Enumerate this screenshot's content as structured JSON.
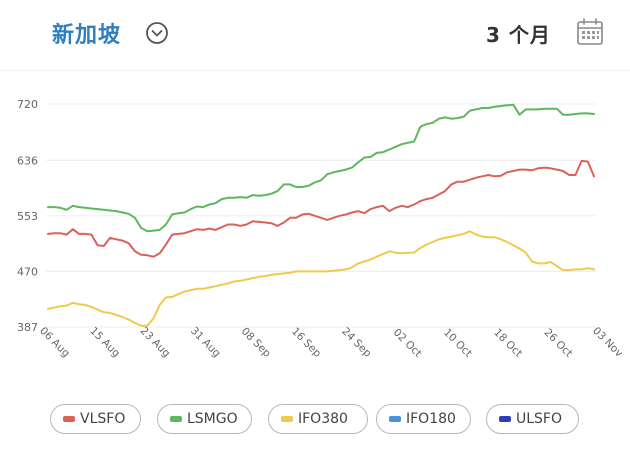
{
  "header": {
    "location": "新加坡",
    "range_label": "3 个月"
  },
  "colors": {
    "VLSFO": "#d9625b",
    "LSMGO": "#5cb85c",
    "IFO380": "#f0c94d",
    "IFO180": "#4a90e2",
    "ULSFO": "#2c3fb5"
  },
  "legend": [
    {
      "label": "VLSFO",
      "color": "#d9625b"
    },
    {
      "label": "LSMGO",
      "color": "#5cb85c"
    },
    {
      "label": "IFO380",
      "color": "#f0c94d"
    },
    {
      "label": "IFO180",
      "color": "#4a90e2"
    },
    {
      "label": "ULSFO",
      "color": "#2c3fb5"
    }
  ],
  "chart_data": {
    "type": "line",
    "yticks": [
      "720",
      "636",
      "553",
      "470",
      "387"
    ],
    "ylim": [
      387,
      720
    ],
    "xticks": [
      "06 Aug",
      "15 Aug",
      "23 Aug",
      "31 Aug",
      "08 Sep",
      "16 Sep",
      "24 Sep",
      "02 Oct",
      "10 Oct",
      "18 Oct",
      "26 Oct",
      "03 Nov"
    ],
    "grid": true,
    "legend_position": "bottom",
    "series": [
      {
        "name": "LSMGO",
        "values": [
          566,
          566,
          565,
          562,
          568,
          566,
          565,
          564,
          563,
          562,
          561,
          560,
          558,
          556,
          550,
          535,
          530,
          531,
          532,
          540,
          555,
          557,
          558,
          563,
          567,
          566,
          570,
          572,
          578,
          580,
          580,
          581,
          580,
          584,
          583,
          584,
          586,
          590,
          600,
          600,
          596,
          596,
          598,
          603,
          606,
          615,
          618,
          620,
          622,
          625,
          633,
          640,
          641,
          647,
          648,
          652,
          656,
          660,
          662,
          664,
          686,
          690,
          692,
          698,
          700,
          698,
          699,
          701,
          710,
          712,
          714,
          714,
          716,
          717,
          718,
          719,
          704,
          712,
          712,
          712,
          713,
          713,
          713,
          704,
          704,
          705,
          706,
          706,
          705
        ]
      },
      {
        "name": "VLSFO",
        "values": [
          526,
          527,
          527,
          525,
          533,
          526,
          526,
          525,
          509,
          508,
          520,
          518,
          516,
          512,
          500,
          495,
          494,
          492,
          497,
          510,
          525,
          526,
          527,
          530,
          533,
          532,
          534,
          532,
          536,
          540,
          540,
          538,
          540,
          545,
          544,
          543,
          542,
          538,
          543,
          550,
          550,
          555,
          556,
          553,
          550,
          547,
          550,
          553,
          555,
          558,
          560,
          557,
          563,
          566,
          568,
          560,
          565,
          568,
          566,
          570,
          575,
          578,
          580,
          585,
          590,
          600,
          604,
          604,
          607,
          610,
          612,
          614,
          612,
          613,
          618,
          620,
          622,
          622,
          621,
          624,
          625,
          624,
          622,
          620,
          614,
          614,
          635,
          634,
          612
        ]
      },
      {
        "name": "IFO380",
        "values": [
          414,
          416,
          418,
          419,
          423,
          421,
          420,
          417,
          413,
          409,
          408,
          405,
          402,
          398,
          393,
          389,
          389,
          400,
          420,
          431,
          432,
          436,
          440,
          442,
          444,
          444,
          446,
          448,
          450,
          452,
          455,
          456,
          458,
          460,
          462,
          463,
          465,
          466,
          467,
          468,
          470,
          470,
          470,
          470,
          470,
          470,
          471,
          472,
          473,
          476,
          482,
          485,
          488,
          492,
          496,
          500,
          498,
          497,
          498,
          498,
          505,
          510,
          514,
          518,
          520,
          522,
          524,
          526,
          530,
          525,
          522,
          521,
          521,
          518,
          514,
          509,
          504,
          498,
          485,
          482,
          482,
          484,
          478,
          472,
          472,
          473,
          473,
          475,
          473
        ]
      }
    ]
  }
}
